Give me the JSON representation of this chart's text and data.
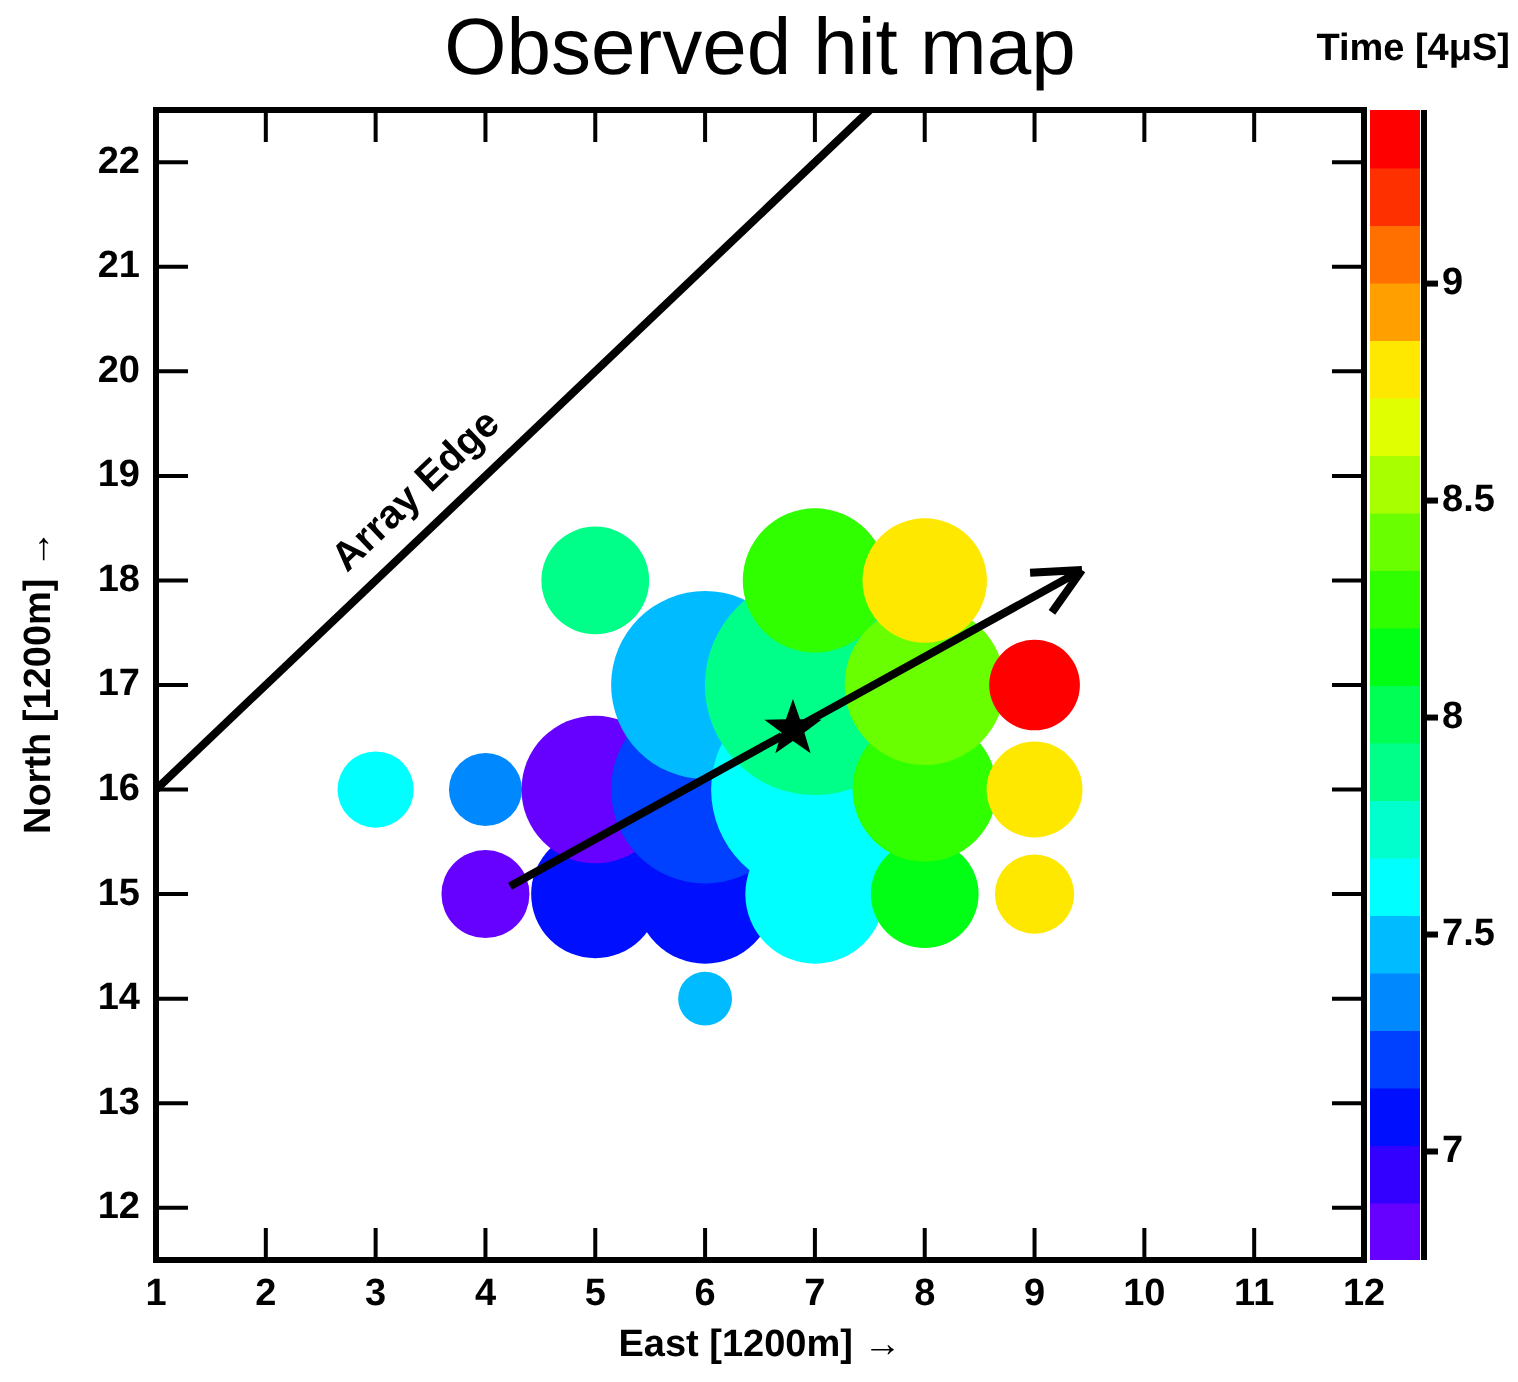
{
  "chart_data": {
    "type": "bubble",
    "title": "Observed hit map",
    "xlabel": "East [1200m] →",
    "ylabel": "North [1200m] →",
    "clabel": "Time [4μS]",
    "xlim": [
      1,
      12
    ],
    "xticks": [
      1,
      2,
      3,
      4,
      5,
      6,
      7,
      8,
      9,
      10,
      11,
      12
    ],
    "ylim": [
      11.5,
      22.5
    ],
    "yticks": [
      12,
      13,
      14,
      15,
      16,
      17,
      18,
      19,
      20,
      21,
      22
    ],
    "clim": [
      6.75,
      9.4
    ],
    "cticks": [
      7,
      7.5,
      8,
      8.5,
      9
    ],
    "grid": false,
    "legend": false,
    "annotations": [
      "Array Edge"
    ],
    "series": [
      {
        "x": [
          3,
          4,
          4,
          5,
          5,
          5,
          6,
          6,
          6,
          6,
          7,
          7,
          7,
          7,
          8,
          8,
          8,
          8,
          9,
          9,
          9
        ],
        "values": [
          16,
          15,
          16,
          15,
          16,
          18,
          14,
          15,
          16,
          17,
          15,
          16,
          17,
          18,
          15,
          16,
          17,
          18,
          15,
          16,
          17
        ],
        "sizes": [
          0.12,
          0.16,
          0.11,
          0.34,
          0.45,
          0.24,
          0.06,
          0.4,
          0.73,
          0.73,
          0.4,
          0.89,
          1,
          0.43,
          0.24,
          0.43,
          0.53,
          0.32,
          0.13,
          0.19,
          0.17
        ],
        "colors": [
          "#00ffff",
          "#6600ff",
          "#0088ff",
          "#0010ff",
          "#6600ff",
          "#00ff88",
          "#00bbff",
          "#0010ff",
          "#0040ff",
          "#00bbff",
          "#00ffff",
          "#00ffff",
          "#00ff88",
          "#30ff00",
          "#00ff15",
          "#30ff00",
          "#6aff00",
          "#ffe800",
          "#ffe800",
          "#ffe800",
          "#ff0000"
        ]
      },
      {
        "type": "line",
        "color": "#000000",
        "marker": "none",
        "x": [
          1,
          7.5
        ],
        "values": [
          16,
          22.5
        ]
      },
      {
        "type": "scatter",
        "color": "#000000",
        "marker": "star",
        "x": [
          6.8
        ],
        "values": [
          16.58
        ]
      }
    ]
  }
}
